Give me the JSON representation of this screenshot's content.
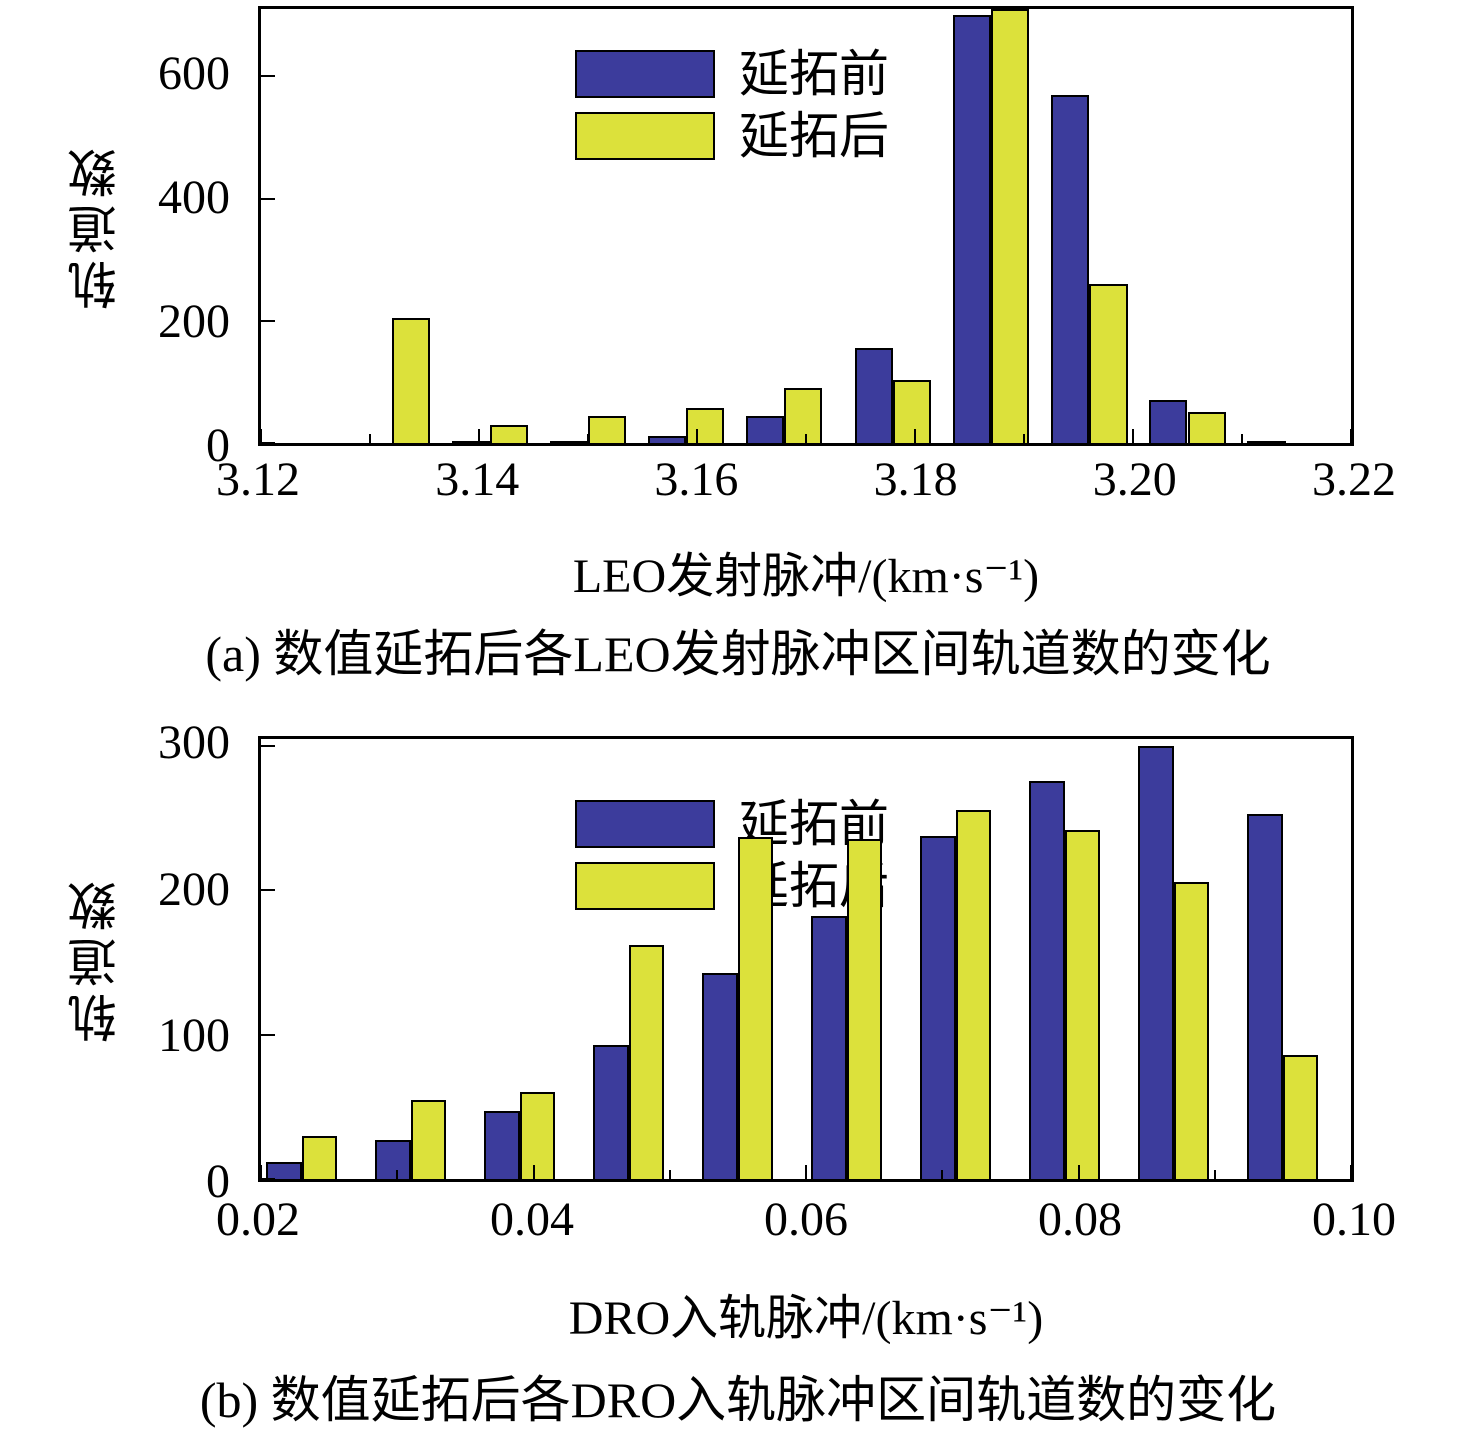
{
  "page": {
    "background": "#ffffff"
  },
  "colors": {
    "series_before": "#3C3C9C",
    "series_after": "#DCE13B",
    "axis": "#000000"
  },
  "chart_data": [
    {
      "id": "a",
      "type": "bar",
      "caption": "(a) 数值延拓后各LEO发射脉冲区间轨道数的变化",
      "xlabel": "LEO发射脉冲/(km·s⁻¹)",
      "ylabel": "轨道数",
      "xlim": [
        3.12,
        3.22
      ],
      "ylim": [
        0,
        710
      ],
      "xticks": [
        3.12,
        3.14,
        3.16,
        3.18,
        3.2,
        3.22
      ],
      "xtick_labels": [
        "3.12",
        "3.14",
        "3.16",
        "3.18",
        "3.20",
        "3.22"
      ],
      "xticks_minor": [
        3.13,
        3.15,
        3.17,
        3.19,
        3.21
      ],
      "yticks": [
        0,
        200,
        400,
        600
      ],
      "ytick_labels": [
        "0",
        "200",
        "400",
        "600"
      ],
      "grid": false,
      "legend_position": "top-left",
      "group_centers": [
        3.132,
        3.141,
        3.15,
        3.159,
        3.168,
        3.178,
        3.187,
        3.196,
        3.205,
        3.214
      ],
      "bar_width": 0.0035,
      "series": [
        {
          "name": "延拓前",
          "color": "#3C3C9C",
          "values": [
            0,
            3,
            2,
            12,
            45,
            155,
            700,
            570,
            70,
            3
          ]
        },
        {
          "name": "延拓后",
          "color": "#DCE13B",
          "values": [
            205,
            30,
            45,
            58,
            90,
            103,
            710,
            260,
            50,
            0
          ]
        }
      ]
    },
    {
      "id": "b",
      "type": "bar",
      "caption": "(b) 数值延拓后各DRO入轨脉冲区间轨道数的变化",
      "xlabel": "DRO入轨脉冲/(km·s⁻¹)",
      "ylabel": "轨道数",
      "xlim": [
        0.02,
        0.1
      ],
      "ylim": [
        0,
        305
      ],
      "xticks": [
        0.02,
        0.04,
        0.06,
        0.08,
        0.1
      ],
      "xtick_labels": [
        "0.02",
        "0.04",
        "0.06",
        "0.08",
        "0.10"
      ],
      "xticks_minor": [
        0.03,
        0.05,
        0.07,
        0.09
      ],
      "yticks": [
        0,
        100,
        200,
        300
      ],
      "ytick_labels": [
        "0",
        "100",
        "200",
        "300"
      ],
      "grid": false,
      "legend_position": "top-left",
      "group_centers": [
        0.023,
        0.031,
        0.039,
        0.047,
        0.055,
        0.063,
        0.071,
        0.079,
        0.087,
        0.095
      ],
      "bar_width": 0.0026,
      "series": [
        {
          "name": "延拓前",
          "color": "#3C3C9C",
          "values": [
            12,
            27,
            47,
            93,
            143,
            182,
            238,
            276,
            300,
            253
          ]
        },
        {
          "name": "延拓后",
          "color": "#DCE13B",
          "values": [
            30,
            55,
            60,
            162,
            237,
            236,
            256,
            242,
            206,
            86
          ]
        }
      ]
    }
  ]
}
